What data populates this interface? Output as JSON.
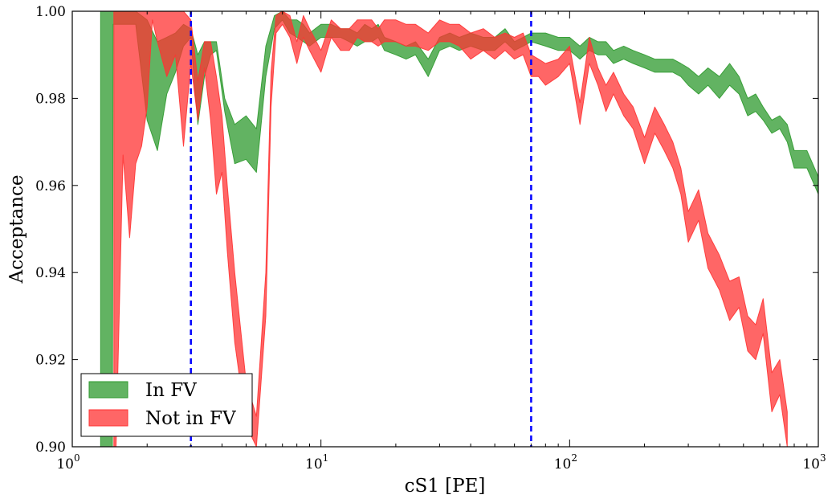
{
  "chart_data": {
    "type": "area",
    "xlabel": "cS1 [PE]",
    "ylabel": "Acceptance",
    "xscale": "log",
    "xlim": [
      1,
      1000
    ],
    "ylim": [
      0.9,
      1.0
    ],
    "grid": false,
    "legend_position": "lower-left",
    "x_ticks": [
      1,
      10,
      100,
      1000
    ],
    "x_tick_labels": [
      {
        "base": "10",
        "exp": "0"
      },
      {
        "base": "10",
        "exp": "1"
      },
      {
        "base": "10",
        "exp": "2"
      },
      {
        "base": "10",
        "exp": "3"
      }
    ],
    "y_ticks": [
      0.9,
      0.92,
      0.94,
      0.96,
      0.98,
      1.0
    ],
    "y_tick_labels": [
      "0.90",
      "0.92",
      "0.94",
      "0.96",
      "0.98",
      "1.00"
    ],
    "vlines": [
      {
        "x": 3,
        "color": "#0000ff",
        "style": "dashed"
      },
      {
        "x": 70,
        "color": "#0000ff",
        "style": "dashed"
      }
    ],
    "series": [
      {
        "name": "In FV",
        "color": "#2e9a2e",
        "opacity": 0.75,
        "x": [
          1.3,
          1.31,
          1.45,
          1.46,
          1.6,
          1.8,
          2.0,
          2.2,
          2.4,
          2.6,
          2.8,
          3.0,
          3.2,
          3.4,
          3.6,
          3.8,
          4.1,
          4.5,
          5.0,
          5.5,
          6.0,
          6.5,
          7.0,
          7.5,
          8.0,
          8.5,
          9.0,
          10,
          11,
          12,
          13,
          14,
          15,
          16,
          17,
          18,
          20,
          22,
          24,
          27,
          30,
          33,
          36,
          40,
          45,
          50,
          55,
          60,
          65,
          70,
          80,
          90,
          100,
          110,
          120,
          130,
          140,
          150,
          165,
          180,
          200,
          220,
          240,
          260,
          280,
          300,
          330,
          360,
          400,
          440,
          480,
          520,
          560,
          600,
          650,
          700,
          750,
          800,
          900,
          1000
        ],
        "lower": [
          0.9,
          0.9,
          0.9,
          0.997,
          0.997,
          0.997,
          0.975,
          0.968,
          0.981,
          0.986,
          0.992,
          0.994,
          0.974,
          0.985,
          0.99,
          0.991,
          0.977,
          0.965,
          0.966,
          0.963,
          0.985,
          0.996,
          0.998,
          0.995,
          0.994,
          0.993,
          0.992,
          0.994,
          0.994,
          0.994,
          0.993,
          0.992,
          0.993,
          0.993,
          0.994,
          0.991,
          0.99,
          0.989,
          0.99,
          0.985,
          0.991,
          0.992,
          0.991,
          0.992,
          0.991,
          0.991,
          0.993,
          0.991,
          0.992,
          0.993,
          0.992,
          0.991,
          0.991,
          0.989,
          0.991,
          0.99,
          0.99,
          0.988,
          0.989,
          0.988,
          0.987,
          0.986,
          0.986,
          0.986,
          0.985,
          0.983,
          0.981,
          0.983,
          0.98,
          0.983,
          0.981,
          0.976,
          0.977,
          0.975,
          0.972,
          0.973,
          0.97,
          0.964,
          0.964,
          0.958
        ],
        "upper": [
          1.0,
          1.0,
          1.0,
          1.0,
          1.0,
          1.0,
          0.998,
          0.993,
          0.994,
          0.995,
          0.997,
          0.996,
          0.99,
          0.993,
          0.993,
          0.993,
          0.98,
          0.974,
          0.976,
          0.973,
          0.992,
          0.999,
          1.0,
          0.998,
          0.998,
          0.997,
          0.995,
          0.997,
          0.997,
          0.996,
          0.996,
          0.995,
          0.997,
          0.996,
          0.997,
          0.994,
          0.993,
          0.992,
          0.993,
          0.989,
          0.994,
          0.995,
          0.994,
          0.995,
          0.994,
          0.994,
          0.996,
          0.993,
          0.994,
          0.995,
          0.995,
          0.994,
          0.994,
          0.992,
          0.994,
          0.993,
          0.993,
          0.991,
          0.992,
          0.991,
          0.99,
          0.989,
          0.989,
          0.989,
          0.988,
          0.987,
          0.985,
          0.987,
          0.985,
          0.988,
          0.985,
          0.98,
          0.981,
          0.978,
          0.975,
          0.976,
          0.974,
          0.968,
          0.968,
          0.962
        ]
      },
      {
        "name": "Not in FV",
        "color": "#ff3333",
        "opacity": 0.75,
        "x": [
          1.47,
          1.5,
          1.6,
          1.7,
          1.8,
          1.9,
          2.0,
          2.1,
          2.2,
          2.4,
          2.6,
          2.8,
          3.0,
          3.2,
          3.4,
          3.6,
          3.8,
          4.0,
          4.2,
          4.5,
          5.0,
          5.5,
          6.0,
          6.3,
          6.6,
          7.0,
          7.5,
          8.0,
          8.5,
          9.0,
          10,
          11,
          12,
          13,
          14,
          15,
          16,
          17,
          18,
          20,
          22,
          24,
          27,
          30,
          33,
          36,
          40,
          45,
          50,
          55,
          60,
          65,
          70,
          75,
          80,
          90,
          100,
          110,
          120,
          130,
          140,
          150,
          165,
          180,
          200,
          220,
          240,
          260,
          280,
          300,
          330,
          360,
          400,
          440,
          480,
          520,
          560,
          600,
          650,
          700,
          750
        ],
        "lower": [
          0.9,
          0.9,
          0.967,
          0.948,
          0.965,
          0.969,
          0.978,
          0.998,
          0.993,
          0.985,
          0.99,
          0.969,
          0.988,
          0.975,
          0.987,
          0.975,
          0.958,
          0.963,
          0.945,
          0.924,
          0.905,
          0.9,
          0.93,
          0.978,
          0.995,
          0.997,
          0.994,
          0.988,
          0.994,
          0.991,
          0.986,
          0.994,
          0.991,
          0.991,
          0.994,
          0.993,
          0.993,
          0.992,
          0.993,
          0.993,
          0.992,
          0.992,
          0.991,
          0.993,
          0.993,
          0.992,
          0.989,
          0.991,
          0.989,
          0.991,
          0.989,
          0.99,
          0.985,
          0.985,
          0.983,
          0.985,
          0.988,
          0.974,
          0.988,
          0.983,
          0.977,
          0.981,
          0.976,
          0.973,
          0.965,
          0.972,
          0.968,
          0.964,
          0.958,
          0.947,
          0.952,
          0.941,
          0.936,
          0.929,
          0.932,
          0.922,
          0.92,
          0.926,
          0.908,
          0.912,
          0.9
        ],
        "upper": [
          1.0,
          1.0,
          1.0,
          1.0,
          1.0,
          1.0,
          1.0,
          1.0,
          1.0,
          1.0,
          1.0,
          1.0,
          0.998,
          0.984,
          0.993,
          0.993,
          0.985,
          0.976,
          0.96,
          0.94,
          0.915,
          0.907,
          0.94,
          0.986,
          0.999,
          1.0,
          0.999,
          0.993,
          0.999,
          0.996,
          0.991,
          0.998,
          0.996,
          0.996,
          0.998,
          0.998,
          0.998,
          0.996,
          0.998,
          0.998,
          0.997,
          0.997,
          0.995,
          0.998,
          0.997,
          0.997,
          0.995,
          0.996,
          0.994,
          0.995,
          0.994,
          0.995,
          0.99,
          0.989,
          0.988,
          0.989,
          0.992,
          0.979,
          0.994,
          0.987,
          0.983,
          0.986,
          0.981,
          0.978,
          0.971,
          0.978,
          0.974,
          0.97,
          0.964,
          0.954,
          0.959,
          0.949,
          0.944,
          0.938,
          0.939,
          0.93,
          0.928,
          0.934,
          0.917,
          0.92,
          0.908
        ]
      }
    ]
  }
}
